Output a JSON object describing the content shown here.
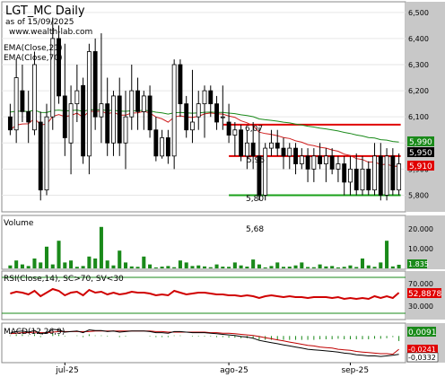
{
  "header": {
    "title": "LGT_MC Daily",
    "subtitle": "as of 15/09/2025",
    "site": "www.wealth-lab.com",
    "ema_labels": [
      "EMA(Close,21)",
      "EMA(Close,70)"
    ]
  },
  "price_annotations": [
    "6,07",
    "5,95",
    "5,80",
    "5,68"
  ],
  "price_axis_ticks": [
    "6,500",
    "6,400",
    "6,300",
    "6,200",
    "6,100",
    "6,000",
    "5,900",
    "5,800"
  ],
  "price_tags": {
    "ema70": "5,990",
    "level": "5,950",
    "ema21": "5,910"
  },
  "volume": {
    "label": "Volume",
    "ticks": [
      "20.000",
      "10.000"
    ],
    "last_tag": "1.835"
  },
  "rsi": {
    "label": "RSI(Close,14), SC>70, SV<30",
    "ticks": [
      "70.000",
      "30.000"
    ],
    "last_tag": "52,8878"
  },
  "macd": {
    "label": "MACD(12,26,9)",
    "tags": [
      "0,0091",
      "-0,0241",
      "-0,0332"
    ]
  },
  "x_axis_labels": [
    "jul-25",
    "ago-25",
    "sep-25"
  ],
  "colors": {
    "bullish": "#ffffff",
    "bearish": "#000000",
    "ema21": "#d02020",
    "ema70": "#1a8a1a",
    "resistance": "#e00000",
    "support": "#1aa01a",
    "volume_bar": "#1a8a1a",
    "rsi_line": "#d00000",
    "rsi_band": "#1a8a1a",
    "macd_hist": "#1a8a1a",
    "axis_bg": "#c8c8c8"
  },
  "chart_data": [
    {
      "type": "candlestick",
      "title": "LGT_MC Daily",
      "ylim": [
        5.75,
        6.52
      ],
      "x_labels": [
        "jul-25",
        "ago-25",
        "sep-25"
      ],
      "ohlc": [
        [
          6.1,
          6.15,
          6.03,
          6.05
        ],
        [
          6.05,
          6.32,
          6.0,
          6.25
        ],
        [
          6.2,
          6.3,
          6.08,
          6.12
        ],
        [
          6.12,
          6.2,
          6.0,
          6.08
        ],
        [
          6.05,
          6.35,
          6.03,
          6.3
        ],
        [
          6.08,
          6.12,
          5.78,
          5.82
        ],
        [
          5.82,
          6.15,
          5.8,
          6.1
        ],
        [
          6.1,
          6.48,
          6.05,
          6.4
        ],
        [
          6.4,
          6.45,
          6.15,
          6.18
        ],
        [
          6.18,
          6.38,
          5.95,
          6.02
        ],
        [
          6.0,
          6.22,
          5.88,
          6.15
        ],
        [
          6.15,
          6.3,
          6.08,
          6.2
        ],
        [
          6.22,
          6.25,
          5.92,
          5.95
        ],
        [
          5.95,
          6.38,
          5.88,
          6.35
        ],
        [
          6.35,
          6.4,
          6.05,
          6.1
        ],
        [
          6.1,
          6.42,
          6.0,
          6.15
        ],
        [
          6.15,
          6.25,
          5.95,
          6.0
        ],
        [
          6.0,
          6.2,
          5.95,
          6.18
        ],
        [
          6.18,
          6.25,
          5.95,
          6.0
        ],
        [
          6.0,
          6.2,
          5.9,
          6.1
        ],
        [
          6.1,
          6.3,
          6.05,
          6.2
        ],
        [
          6.2,
          6.25,
          6.05,
          6.12
        ],
        [
          6.12,
          6.2,
          6.05,
          6.18
        ],
        [
          6.18,
          6.22,
          6.02,
          6.05
        ],
        [
          6.05,
          6.1,
          5.93,
          5.95
        ],
        [
          5.95,
          6.05,
          5.94,
          6.02
        ],
        [
          6.02,
          6.05,
          5.92,
          5.95
        ],
        [
          5.95,
          6.32,
          5.9,
          6.3
        ],
        [
          6.3,
          6.32,
          6.1,
          6.15
        ],
        [
          6.15,
          6.18,
          6.02,
          6.05
        ],
        [
          6.05,
          6.28,
          6.0,
          6.08
        ],
        [
          6.1,
          6.2,
          6.05,
          6.15
        ],
        [
          6.15,
          6.22,
          6.02,
          6.2
        ],
        [
          6.2,
          6.22,
          6.1,
          6.15
        ],
        [
          6.15,
          6.18,
          6.05,
          6.08
        ],
        [
          6.1,
          6.22,
          6.05,
          6.1
        ],
        [
          6.08,
          6.15,
          6.0,
          6.03
        ],
        [
          6.03,
          6.08,
          5.95,
          6.05
        ],
        [
          6.05,
          6.07,
          5.93,
          5.95
        ],
        [
          5.95,
          6.05,
          5.9,
          6.0
        ],
        [
          6.0,
          6.08,
          5.9,
          5.95
        ],
        [
          5.95,
          6.06,
          5.78,
          5.8
        ],
        [
          5.8,
          6.0,
          5.78,
          5.98
        ],
        [
          5.98,
          6.05,
          5.95,
          6.0
        ],
        [
          6.0,
          6.05,
          5.95,
          5.98
        ],
        [
          5.98,
          6.02,
          5.9,
          5.95
        ],
        [
          5.95,
          6.0,
          5.9,
          5.98
        ],
        [
          5.98,
          6.0,
          5.88,
          5.92
        ],
        [
          5.92,
          5.98,
          5.9,
          5.95
        ],
        [
          5.95,
          5.98,
          5.85,
          5.9
        ],
        [
          5.9,
          5.98,
          5.85,
          5.95
        ],
        [
          5.95,
          6.0,
          5.9,
          5.92
        ],
        [
          5.92,
          5.98,
          5.85,
          5.95
        ],
        [
          5.95,
          5.98,
          5.88,
          5.9
        ],
        [
          5.9,
          5.95,
          5.85,
          5.92
        ],
        [
          5.92,
          5.95,
          5.8,
          5.85
        ],
        [
          5.85,
          5.95,
          5.8,
          5.9
        ],
        [
          5.9,
          5.96,
          5.8,
          5.82
        ],
        [
          5.82,
          5.95,
          5.8,
          5.9
        ],
        [
          5.9,
          5.93,
          5.8,
          5.82
        ],
        [
          5.82,
          6.0,
          5.8,
          5.95
        ],
        [
          5.95,
          6.0,
          5.78,
          5.8
        ],
        [
          5.8,
          5.98,
          5.78,
          5.95
        ],
        [
          5.95,
          5.98,
          5.8,
          5.82
        ],
        [
          5.82,
          5.96,
          5.8,
          5.92
        ]
      ],
      "levels": {
        "resistance_top": 6.07,
        "resistance": 5.95,
        "support": 5.8
      }
    },
    {
      "type": "bar",
      "title": "Volume",
      "ylim": [
        0,
        25000
      ],
      "values": [
        1500,
        4000,
        2000,
        1200,
        5000,
        3000,
        11000,
        2000,
        14000,
        3000,
        4000,
        800,
        1200,
        6000,
        5000,
        21000,
        4000,
        1500,
        9000,
        3000,
        1000,
        800,
        6000,
        2000,
        500,
        900,
        1200,
        600,
        4000,
        3000,
        1200,
        1500,
        1000,
        600,
        2000,
        900,
        800,
        3000,
        1500,
        900,
        4500,
        2000,
        500,
        1200,
        3000,
        800,
        900,
        1500,
        3000,
        700,
        600,
        2000,
        1000,
        1200,
        500,
        800,
        1500,
        700,
        5000,
        1500,
        800,
        3000,
        14000,
        1000,
        1835
      ]
    },
    {
      "type": "line",
      "title": "RSI(Close,14), SC>70, SV<30",
      "ylim": [
        25,
        75
      ],
      "bands": [
        70,
        30
      ],
      "values": [
        52,
        54,
        53,
        51,
        55,
        49,
        53,
        57,
        55,
        50,
        53,
        54,
        50,
        56,
        53,
        54,
        51,
        53,
        51,
        52,
        54,
        53,
        53,
        52,
        50,
        51,
        50,
        55,
        53,
        51,
        52,
        53,
        53,
        52,
        51,
        51,
        50,
        50,
        49,
        50,
        49,
        47,
        49,
        50,
        49,
        48,
        49,
        48,
        48,
        47,
        48,
        48,
        48,
        47,
        48,
        46,
        47,
        46,
        47,
        46,
        49,
        47,
        49,
        47,
        52.89
      ]
    },
    {
      "type": "line",
      "title": "MACD(12,26,9)",
      "ylim": [
        -0.045,
        0.02
      ],
      "macd": [
        0.005,
        0.008,
        0.009,
        0.007,
        0.01,
        0.004,
        0.006,
        0.012,
        0.011,
        0.007,
        0.008,
        0.009,
        0.006,
        0.011,
        0.01,
        0.01,
        0.008,
        0.009,
        0.007,
        0.008,
        0.009,
        0.009,
        0.009,
        0.008,
        0.006,
        0.006,
        0.005,
        0.008,
        0.008,
        0.007,
        0.006,
        0.006,
        0.006,
        0.005,
        0.004,
        0.003,
        0.002,
        0.001,
        -0.001,
        -0.002,
        -0.004,
        -0.008,
        -0.01,
        -0.012,
        -0.014,
        -0.016,
        -0.018,
        -0.02,
        -0.022,
        -0.024,
        -0.025,
        -0.026,
        -0.027,
        -0.028,
        -0.029,
        -0.031,
        -0.032,
        -0.034,
        -0.035,
        -0.036,
        -0.036,
        -0.037,
        -0.036,
        -0.035,
        -0.0332
      ],
      "signal": [
        0.004,
        0.005,
        0.006,
        0.006,
        0.007,
        0.006,
        0.006,
        0.007,
        0.008,
        0.008,
        0.008,
        0.008,
        0.008,
        0.008,
        0.009,
        0.009,
        0.009,
        0.009,
        0.009,
        0.009,
        0.009,
        0.009,
        0.009,
        0.009,
        0.008,
        0.008,
        0.007,
        0.007,
        0.007,
        0.007,
        0.007,
        0.007,
        0.007,
        0.006,
        0.006,
        0.005,
        0.005,
        0.004,
        0.003,
        0.002,
        0.001,
        -0.001,
        -0.003,
        -0.005,
        -0.007,
        -0.009,
        -0.011,
        -0.013,
        -0.015,
        -0.017,
        -0.018,
        -0.02,
        -0.021,
        -0.022,
        -0.024,
        -0.025,
        -0.026,
        -0.028,
        -0.029,
        -0.03,
        -0.031,
        -0.032,
        -0.032,
        -0.033,
        -0.0241
      ],
      "histogram_last": 0.0091
    }
  ]
}
